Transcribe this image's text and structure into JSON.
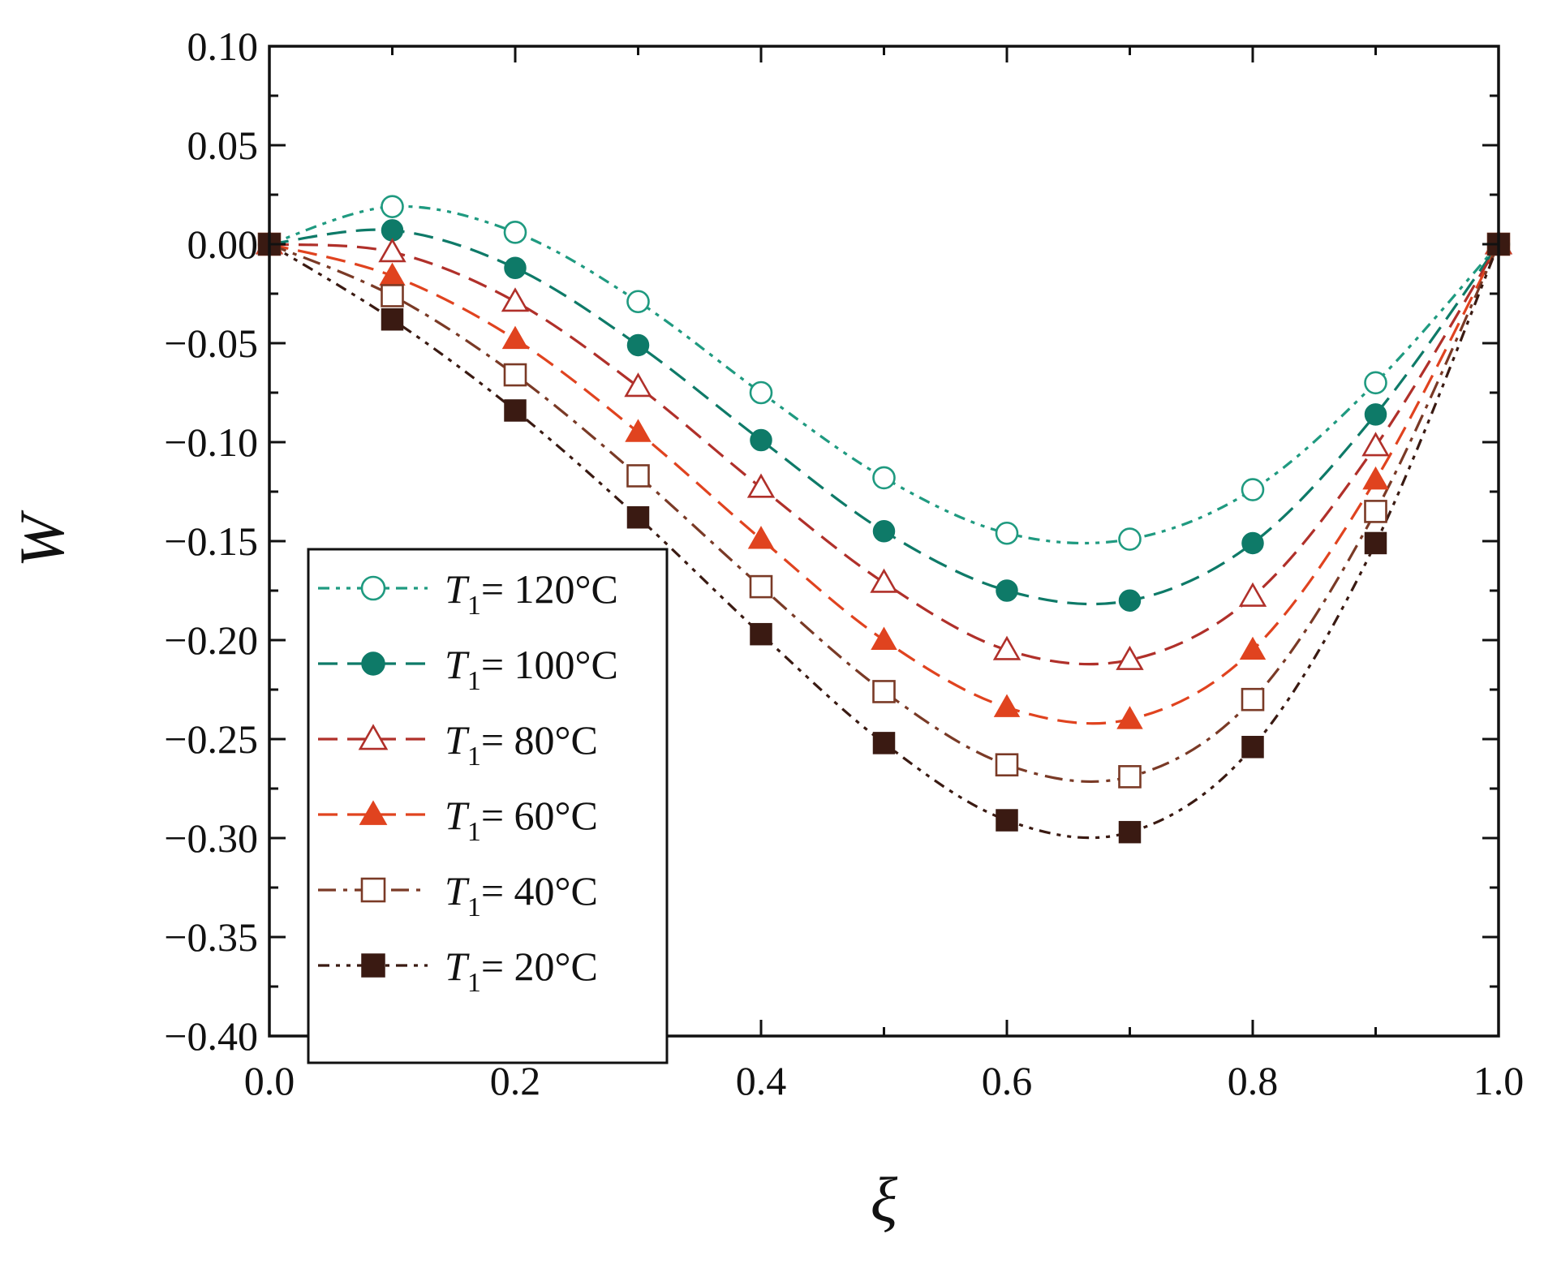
{
  "chart_data": {
    "type": "line",
    "title": "",
    "xlabel": "ξ",
    "ylabel": "W",
    "xlim": [
      0.0,
      1.0
    ],
    "ylim": [
      -0.4,
      0.1
    ],
    "xticks": [
      0.0,
      0.2,
      0.4,
      0.6,
      0.8,
      1.0
    ],
    "xtick_labels": [
      "0.0",
      "0.2",
      "0.4",
      "0.6",
      "0.8",
      "1.0"
    ],
    "yticks": [
      0.1,
      0.05,
      0.0,
      -0.05,
      -0.1,
      -0.15,
      -0.2,
      -0.25,
      -0.3,
      -0.35,
      -0.4
    ],
    "ytick_labels": [
      "0.10",
      "0.05",
      "0.00",
      "−0.05",
      "−0.10",
      "−0.15",
      "−0.20",
      "−0.25",
      "−0.30",
      "−0.35",
      "−0.40"
    ],
    "grid": false,
    "legend_position": "lower-left",
    "legend_symbol": "T",
    "legend_subscript": "1",
    "x": [
      0.0,
      0.1,
      0.2,
      0.3,
      0.4,
      0.5,
      0.6,
      0.7,
      0.8,
      0.9,
      1.0
    ],
    "series": [
      {
        "name": "T1 = 120°C",
        "label_value": "= 120°C",
        "color": "#1f9a80",
        "marker": "circle-open",
        "dash": "dash-dot-dot",
        "values": [
          0.0,
          0.019,
          0.006,
          -0.029,
          -0.075,
          -0.118,
          -0.146,
          -0.149,
          -0.124,
          -0.07,
          0.0
        ]
      },
      {
        "name": "T1 = 100°C",
        "label_value": "= 100°C",
        "color": "#0e7a68",
        "marker": "circle-filled",
        "dash": "dash",
        "values": [
          0.0,
          0.007,
          -0.012,
          -0.051,
          -0.099,
          -0.145,
          -0.175,
          -0.18,
          -0.151,
          -0.086,
          0.0
        ]
      },
      {
        "name": "T1 = 80°C",
        "label_value": "= 80°C",
        "color": "#b0302a",
        "marker": "triangle-open",
        "dash": "dash",
        "values": [
          0.0,
          -0.004,
          -0.029,
          -0.072,
          -0.123,
          -0.171,
          -0.205,
          -0.21,
          -0.178,
          -0.102,
          0.0
        ]
      },
      {
        "name": "T1 = 60°C",
        "label_value": "= 60°C",
        "color": "#e0431f",
        "marker": "triangle-filled",
        "dash": "dash",
        "values": [
          0.0,
          -0.016,
          -0.048,
          -0.095,
          -0.149,
          -0.2,
          -0.234,
          -0.24,
          -0.205,
          -0.119,
          0.0
        ]
      },
      {
        "name": "T1 = 40°C",
        "label_value": "= 40°C",
        "color": "#7a3a26",
        "marker": "square-open",
        "dash": "dash-dot",
        "values": [
          0.0,
          -0.026,
          -0.066,
          -0.117,
          -0.173,
          -0.226,
          -0.263,
          -0.269,
          -0.23,
          -0.135,
          0.0
        ]
      },
      {
        "name": "T1 = 20°C",
        "label_value": "= 20°C",
        "color": "#3a1a12",
        "marker": "square-filled",
        "dash": "dash-dot-dot",
        "values": [
          0.0,
          -0.038,
          -0.084,
          -0.138,
          -0.197,
          -0.252,
          -0.291,
          -0.297,
          -0.254,
          -0.151,
          0.0
        ]
      }
    ]
  }
}
